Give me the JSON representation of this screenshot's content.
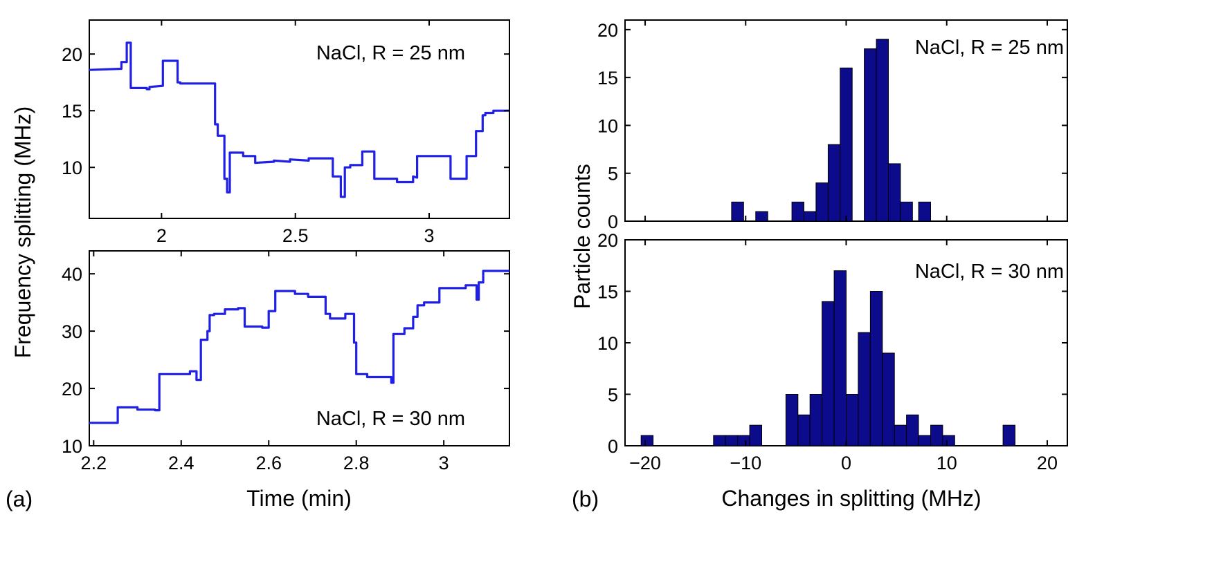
{
  "figure": {
    "panel_a_label": "(a)",
    "panel_b_label": "(b)",
    "a_ylabel": "Frequency splitting (MHz)",
    "a_xlabel": "Time (min)",
    "b_ylabel": "Particle counts",
    "b_xlabel": "Changes in splitting (MHz)"
  },
  "colors": {
    "trace": "#1f1fe6",
    "bar_fill": "#0b0b8c",
    "bar_edge": "#000000"
  },
  "chart_data": [
    {
      "id": "a_top",
      "type": "line",
      "annotation": "NaCl, R = 25 nm",
      "xlim": [
        1.73,
        3.3
      ],
      "ylim": [
        5.5,
        23
      ],
      "xticks": [
        2,
        2.5,
        3
      ],
      "xtick_labels": [
        "2",
        "2.5",
        "3"
      ],
      "yticks": [
        10,
        15,
        20
      ],
      "ytick_labels": [
        "10",
        "15",
        "20"
      ],
      "series": [
        {
          "name": "splitting",
          "x": [
            1.73,
            1.85,
            1.85,
            1.87,
            1.87,
            1.885,
            1.885,
            1.945,
            1.945,
            1.955,
            1.955,
            2.005,
            2.005,
            2.06,
            2.06,
            2.07,
            2.07,
            2.2,
            2.2,
            2.21,
            2.21,
            2.235,
            2.235,
            2.245,
            2.245,
            2.255,
            2.255,
            2.305,
            2.305,
            2.35,
            2.35,
            2.42,
            2.42,
            2.48,
            2.48,
            2.55,
            2.55,
            2.64,
            2.64,
            2.67,
            2.67,
            2.685,
            2.685,
            2.705,
            2.705,
            2.75,
            2.75,
            2.795,
            2.795,
            2.88,
            2.88,
            2.94,
            2.94,
            2.955,
            2.955,
            3.08,
            3.08,
            3.14,
            3.14,
            3.175,
            3.175,
            3.2,
            3.2,
            3.21,
            3.21,
            3.24,
            3.24,
            3.3
          ],
          "y": [
            18.6,
            18.7,
            19.3,
            19.3,
            21.0,
            21.0,
            17.0,
            17.0,
            16.9,
            16.9,
            17.1,
            17.2,
            19.4,
            19.4,
            17.5,
            17.5,
            17.4,
            17.4,
            13.8,
            13.8,
            12.8,
            12.8,
            9.0,
            9.0,
            7.8,
            7.8,
            11.3,
            11.3,
            11.0,
            11.0,
            10.4,
            10.5,
            10.6,
            10.5,
            10.7,
            10.6,
            10.8,
            10.8,
            9.2,
            9.2,
            7.4,
            7.4,
            10.0,
            10.0,
            10.2,
            10.2,
            11.4,
            11.4,
            9.0,
            9.0,
            8.7,
            8.7,
            9.2,
            9.1,
            11.0,
            11.0,
            9.0,
            9.0,
            11.0,
            11.0,
            13.2,
            13.2,
            14.6,
            14.6,
            14.8,
            14.8,
            15.0,
            15.0
          ]
        }
      ]
    },
    {
      "id": "a_bottom",
      "type": "line",
      "annotation": "NaCl, R = 30 nm",
      "xlim": [
        2.19,
        3.15
      ],
      "ylim": [
        10,
        44
      ],
      "xticks": [
        2.2,
        2.4,
        2.6,
        2.8,
        3
      ],
      "xtick_labels": [
        "2.2",
        "2.4",
        "2.6",
        "2.8",
        "3"
      ],
      "yticks": [
        10,
        20,
        30,
        40
      ],
      "ytick_labels": [
        "10",
        "20",
        "30",
        "40"
      ],
      "series": [
        {
          "name": "splitting",
          "x": [
            2.19,
            2.255,
            2.255,
            2.3,
            2.3,
            2.34,
            2.34,
            2.35,
            2.35,
            2.42,
            2.42,
            2.435,
            2.435,
            2.445,
            2.445,
            2.46,
            2.46,
            2.465,
            2.465,
            2.475,
            2.475,
            2.5,
            2.5,
            2.53,
            2.53,
            2.545,
            2.545,
            2.585,
            2.585,
            2.6,
            2.6,
            2.615,
            2.615,
            2.66,
            2.66,
            2.69,
            2.69,
            2.73,
            2.73,
            2.74,
            2.74,
            2.775,
            2.775,
            2.795,
            2.795,
            2.8,
            2.8,
            2.825,
            2.825,
            2.88,
            2.88,
            2.885,
            2.885,
            2.91,
            2.91,
            2.93,
            2.93,
            2.94,
            2.94,
            2.955,
            2.955,
            2.99,
            2.99,
            3.05,
            3.05,
            3.075,
            3.075,
            3.08,
            3.08,
            3.09,
            3.09,
            3.1,
            3.1,
            3.15
          ],
          "y": [
            14.0,
            14.0,
            16.7,
            16.7,
            16.3,
            16.3,
            16.2,
            16.2,
            22.5,
            22.5,
            23.0,
            23.0,
            21.5,
            21.5,
            28.5,
            28.5,
            30.0,
            30.0,
            32.8,
            32.8,
            33.0,
            33.0,
            33.8,
            33.8,
            34.0,
            34.0,
            30.8,
            30.8,
            30.6,
            30.6,
            33.5,
            33.5,
            37.0,
            37.0,
            36.5,
            36.5,
            36.0,
            36.0,
            33.0,
            33.0,
            32.2,
            32.2,
            33.0,
            33.0,
            28.0,
            28.0,
            22.5,
            22.5,
            22.0,
            22.0,
            21.0,
            21.0,
            29.5,
            29.5,
            30.5,
            30.5,
            32.5,
            32.5,
            34.5,
            34.5,
            35.0,
            35.0,
            37.5,
            37.5,
            38.0,
            38.0,
            35.5,
            35.5,
            38.5,
            38.5,
            40.5,
            40.5,
            40.5,
            40.5
          ]
        }
      ]
    },
    {
      "id": "b_top",
      "type": "bar",
      "annotation": "NaCl, R = 25 nm",
      "bin_width": 1.2,
      "bin_centers": [
        -10.8,
        -9.6,
        -8.4,
        -7.2,
        -6.0,
        -4.8,
        -3.6,
        -2.4,
        -1.2,
        0.0,
        1.2,
        2.4,
        3.6,
        4.8,
        6.0,
        7.2
      ],
      "values": [
        2,
        0,
        1,
        0,
        0,
        2,
        1,
        4,
        8,
        16,
        0,
        18,
        19,
        6,
        2,
        0
      ],
      "values_extra": {
        "7.8": 2
      },
      "xlim": [
        -22,
        22
      ],
      "ylim": [
        0,
        21
      ],
      "yticks": [
        0,
        5,
        10,
        15,
        20
      ],
      "ytick_labels": [
        "0",
        "5",
        "10",
        "15",
        "20"
      ]
    },
    {
      "id": "b_bottom",
      "type": "bar",
      "annotation": "NaCl, R = 30 nm",
      "bin_width": 1.2,
      "bin_centers": [
        -19.8,
        -12.6,
        -11.4,
        -10.2,
        -9.0,
        -5.4,
        -4.2,
        -3.0,
        -1.8,
        -0.6,
        0.6,
        1.8,
        3.0,
        4.2,
        5.4,
        6.6,
        7.8,
        9.0,
        10.2,
        16.2
      ],
      "values": [
        1,
        1,
        1,
        1,
        2,
        5,
        3,
        5,
        14,
        17,
        5,
        11,
        15,
        9,
        2,
        3,
        1,
        2,
        1,
        2
      ],
      "xlim": [
        -22,
        22
      ],
      "ylim": [
        0,
        20
      ],
      "xticks": [
        -20,
        -10,
        0,
        10,
        20
      ],
      "xtick_labels": [
        "−20",
        "−10",
        "0",
        "10",
        "20"
      ],
      "yticks": [
        0,
        5,
        10,
        15,
        20
      ],
      "ytick_labels": [
        "0",
        "5",
        "10",
        "15",
        "20"
      ]
    }
  ]
}
